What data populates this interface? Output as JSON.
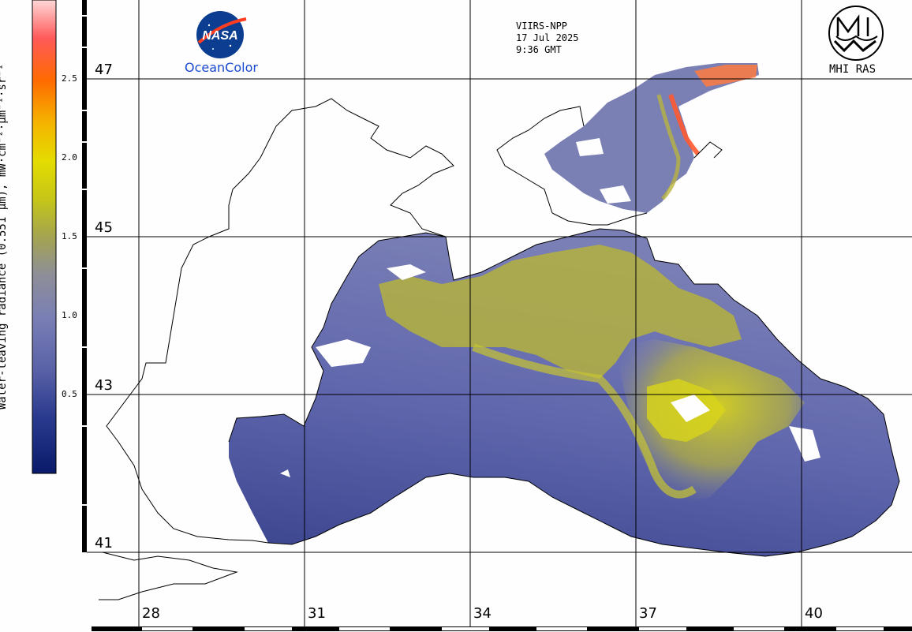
{
  "satellite_info": {
    "sensor": "VIIRS-NPP",
    "date": "17 Jul 2025",
    "time": "9:36 GMT"
  },
  "logos": {
    "nasa_text": "NASA",
    "ocean_color": "OceanColor",
    "institute": "MHI RAS"
  },
  "colorbar": {
    "title": "Water-leaving radiance (0.551 μm), mW·cm⁻²·μm⁻¹·sr⁻¹",
    "ticks": [
      "2.5",
      "2.0",
      "1.5",
      "1.0",
      "0.5"
    ],
    "tick_values": [
      2.5,
      2.0,
      1.5,
      1.0,
      0.5
    ],
    "range": [
      0,
      3.0
    ],
    "colors": [
      "#0a1a6a",
      "#3a449a",
      "#6d73b0",
      "#8c8c9c",
      "#a4a43a",
      "#d8d80a",
      "#f0c000",
      "#ff7a00",
      "#ff5050",
      "#ffd0d0"
    ]
  },
  "grid": {
    "latitudes": [
      "47",
      "45",
      "43",
      "41"
    ],
    "longitudes": [
      "28",
      "31",
      "34",
      "37",
      "40"
    ]
  },
  "colors": {
    "sea_low": "#5a62a8",
    "sea_mid": "#7a7fb8",
    "bloom": "#c0c030",
    "hot": "#ff6030",
    "grid": "#000000"
  }
}
